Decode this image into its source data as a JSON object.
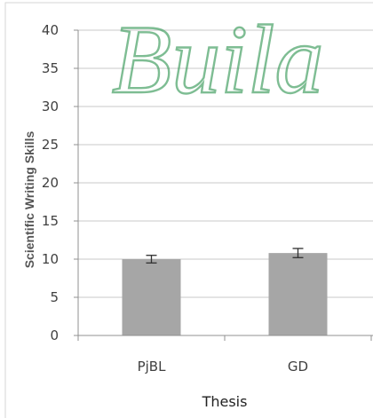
{
  "chart_data": {
    "type": "bar",
    "categories": [
      "PjBL",
      "GD"
    ],
    "values": [
      10,
      10.8
    ],
    "error": [
      0.5,
      0.6
    ],
    "xlabel": "Thesis",
    "ylabel": "Scientific Writing Skills",
    "ylim": [
      0,
      40
    ],
    "yticks": [
      0,
      5,
      10,
      15,
      20,
      25,
      30,
      35,
      40
    ],
    "grid": true,
    "bar_color": "#a6a6a6",
    "watermark": "Buila"
  }
}
